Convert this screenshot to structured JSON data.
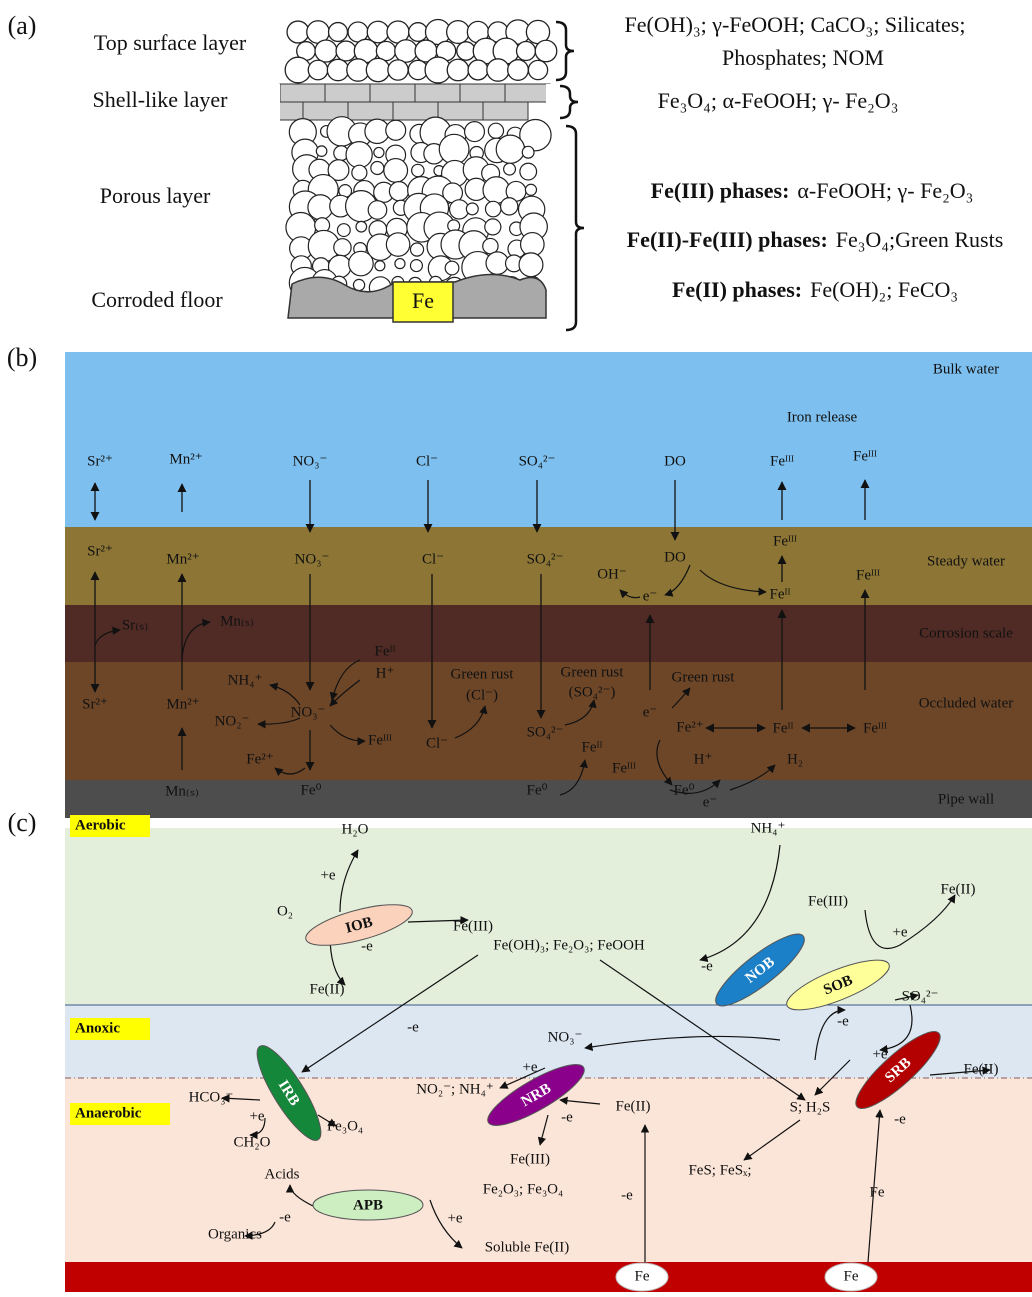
{
  "panel_a": {
    "label": "(a)",
    "layers": [
      "Top surface layer",
      "Shell-like layer",
      "Porous layer",
      "Corroded floor"
    ],
    "metal": "Fe",
    "compositions": [
      "Fe(OH)₃; γ-FeOOH;  CaCO₃; Silicates;",
      "Phosphates; NOM",
      "Fe₃O₄; α-FeOOH; γ- Fe₂O₃"
    ],
    "phases": [
      {
        "name": "Fe(III) phases:",
        "species": "α-FeOOH; γ- Fe₂O₃"
      },
      {
        "name": "Fe(II)-Fe(III) phases:",
        "species": "Fe₃O₄;Green Rusts"
      },
      {
        "name": "Fe(II) phases:",
        "species": "Fe(OH)₂; FeCO₃"
      }
    ]
  },
  "panel_b": {
    "label": "(b)",
    "zones": [
      "Bulk water",
      "Steady water",
      "Corrosion scale",
      "Occluded water",
      "Pipe wall"
    ],
    "title": "Iron release",
    "labels": [
      "Sr²⁺",
      "Mn²⁺",
      "NO₃⁻",
      "Cl⁻",
      "SO₄²⁻",
      "DO",
      "Feᴵᴵᴵ",
      "Feᴵᴵᴵ",
      "Sr²⁺",
      "Mn²⁺",
      "NO₃⁻",
      "Cl⁻",
      "SO₄²⁻",
      "DO",
      "Feᴵᴵᴵ",
      "Feᴵᴵᴵ",
      "OH⁻",
      "e⁻",
      "Feᴵᴵ",
      "Sr₍ₛ₎",
      "Mn₍ₛ₎",
      "NH₄⁺",
      "Feᴵᴵ",
      "H⁺",
      "NO₂⁻",
      "NO₃⁻",
      "Feᴵᴵᴵ",
      "Green rust",
      "(Cl⁻)",
      "Green rust",
      "(SO₄²⁻)",
      "Green rust",
      "Sr²⁺",
      "Mn²⁺",
      "e⁻",
      "Fe²⁺",
      "Feᴵᴵ",
      "Feᴵᴵᴵ",
      "SO₄²⁻",
      "Cl⁻",
      "Feᴵᴵ",
      "Feᴵᴵᴵ",
      "Fe²⁺",
      "H⁺",
      "H₂",
      "Mn₍ₛ₎",
      "Fe⁰",
      "Fe⁰",
      "Fe⁰",
      "e⁻"
    ]
  },
  "panel_c": {
    "label": "(c)",
    "zones": [
      "Aerobic",
      "Anoxic",
      "Anaerobic"
    ],
    "bacteria": [
      "IOB",
      "NOB",
      "SOB",
      "IRB",
      "NRB",
      "SRB",
      "APB"
    ],
    "labels": [
      "H₂O",
      "+e",
      "O₂",
      "Fe(III)",
      "-e",
      "Fe(OH)₃; Fe₂O₃; FeOOH",
      "Fe(II)",
      "NH₄⁺",
      "Fe(III)",
      "Fe(II)",
      "+e",
      "-e",
      "SO₄²⁻",
      "-e",
      "-e",
      "NO₃⁻",
      "+e",
      "+e",
      "Fe(II)",
      "HCO₃⁻",
      "+e",
      "CH₂O",
      "Fe₃O₄",
      "NO₂⁻; NH₄⁺",
      "-e",
      "Fe(II)",
      "Fe(III)",
      "S; H₂S",
      "-e",
      "FeS; FeSₓ;",
      "Acids",
      "Fe₂O₃; Fe₃O₄",
      "-e",
      "Organics",
      "+e",
      "Soluble Fe(II)",
      "-e",
      "Fe"
    ],
    "sources": [
      "Fe",
      "Fe"
    ]
  }
}
